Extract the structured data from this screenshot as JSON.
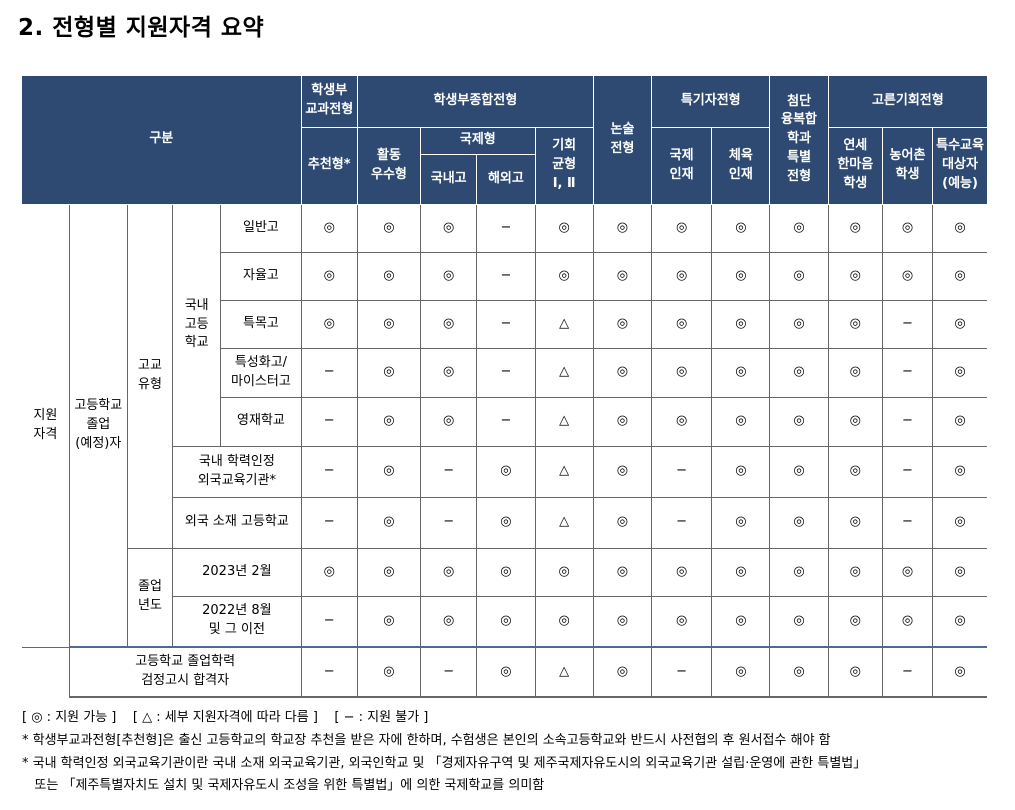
{
  "title": "2. 전형별 지원자격 요약",
  "header": {
    "gubun": "구분",
    "student_rec": "학생부\n교과전형",
    "recommend": "추천형*",
    "comprehensive": "학생부종합전형",
    "activity": "활동\n우수형",
    "international": "국제형",
    "domestic": "국내고",
    "overseas": "해외고",
    "opportunity": "기회\n균형\nⅠ, Ⅱ",
    "essay": "논술\n전형",
    "special": "특기자전형",
    "intl_talent": "국제\n인재",
    "sports_talent": "체육\n인재",
    "advanced": "첨단\n융복합\n학과\n특별\n전형",
    "equal": "고른기회전형",
    "yonsei": "연세\n한마음\n학생",
    "farm": "농어촌\n학생",
    "special_ed": "특수교육\n대상자\n(예능)"
  },
  "labels": {
    "qualification": "지원\n자격",
    "hs_grad": "고등학교\n졸업\n(예정)자",
    "school_type": "고교\n유형",
    "domestic_hs": "국내\n고등\n학교",
    "grad_year": "졸업\n년도"
  },
  "rows": [
    {
      "label": "일반고",
      "cells": [
        "◎",
        "◎",
        "◎",
        "−",
        "◎",
        "◎",
        "◎",
        "◎",
        "◎",
        "◎",
        "◎",
        "◎"
      ]
    },
    {
      "label": "자율고",
      "cells": [
        "◎",
        "◎",
        "◎",
        "−",
        "◎",
        "◎",
        "◎",
        "◎",
        "◎",
        "◎",
        "◎",
        "◎"
      ]
    },
    {
      "label": "특목고",
      "cells": [
        "◎",
        "◎",
        "◎",
        "−",
        "△",
        "◎",
        "◎",
        "◎",
        "◎",
        "◎",
        "−",
        "◎"
      ]
    },
    {
      "label": "특성화고/\n마이스터고",
      "cells": [
        "−",
        "◎",
        "◎",
        "−",
        "△",
        "◎",
        "◎",
        "◎",
        "◎",
        "◎",
        "−",
        "◎"
      ]
    },
    {
      "label": "영재학교",
      "cells": [
        "−",
        "◎",
        "◎",
        "−",
        "△",
        "◎",
        "◎",
        "◎",
        "◎",
        "◎",
        "−",
        "◎"
      ]
    },
    {
      "label": "국내 학력인정\n외국교육기관*",
      "cells": [
        "−",
        "◎",
        "−",
        "◎",
        "△",
        "◎",
        "−",
        "◎",
        "◎",
        "◎",
        "−",
        "◎"
      ]
    },
    {
      "label": "외국 소재 고등학교",
      "cells": [
        "−",
        "◎",
        "−",
        "◎",
        "△",
        "◎",
        "−",
        "◎",
        "◎",
        "◎",
        "−",
        "◎"
      ]
    },
    {
      "label": "2023년 2월",
      "cells": [
        "◎",
        "◎",
        "◎",
        "◎",
        "◎",
        "◎",
        "◎",
        "◎",
        "◎",
        "◎",
        "◎",
        "◎"
      ]
    },
    {
      "label": "2022년 8월\n및 그 이전",
      "cells": [
        "−",
        "◎",
        "◎",
        "◎",
        "◎",
        "◎",
        "◎",
        "◎",
        "◎",
        "◎",
        "◎",
        "◎"
      ]
    },
    {
      "label": "고등학교 졸업학력\n검정고시 합격자",
      "cells": [
        "−",
        "◎",
        "−",
        "◎",
        "△",
        "◎",
        "−",
        "◎",
        "◎",
        "◎",
        "−",
        "◎"
      ]
    }
  ],
  "legend": "[ ◎ : 지원 가능 ]    [ △ : 세부 지원자격에 따라 다름 ]    [ − : 지원 불가 ]",
  "notes": [
    "* 학생부교과전형[추천형]은 출신 고등학교의 학교장 추천을 받은 자에 한하며, 수험생은 본인의 소속고등학교와 반드시 사전협의 후 원서접수 해야 함",
    "* 국내 학력인정 외국교육기관이란 국내 소재 외국교육기관, 외국인학교 및 「경제자유구역 및 제주국제자유도시의 외국교육기관 설립·운영에 관한 특별법」",
    "   또는 「제주특별자치도 설치 및 국제자유도시 조성을 위한 특별법」에 의한 국제학교를 의미함"
  ]
}
